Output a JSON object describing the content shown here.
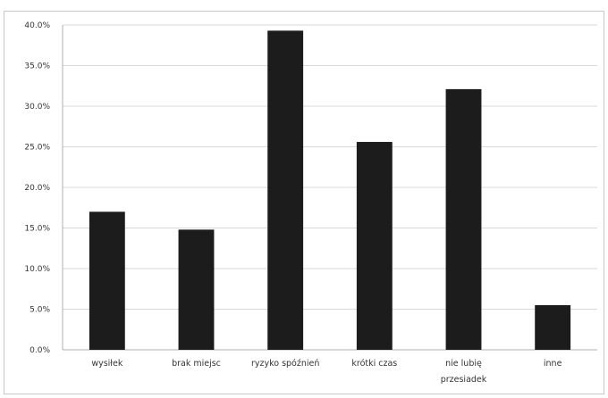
{
  "chart_data": {
    "type": "bar",
    "categories": [
      [
        "wysiłek"
      ],
      [
        "brak miejsc"
      ],
      [
        "ryzyko spóźnień"
      ],
      [
        "krótki czas"
      ],
      [
        "nie lubię",
        "przesiadek"
      ],
      [
        "inne"
      ]
    ],
    "values": [
      17.0,
      14.8,
      39.3,
      25.6,
      32.1,
      5.5
    ],
    "title": "",
    "xlabel": "",
    "ylabel": "",
    "ylim": [
      0,
      40
    ],
    "yticks": [
      0,
      5,
      10,
      15,
      20,
      25,
      30,
      35,
      40
    ],
    "ytick_labels": [
      "0.0%",
      "5.0%",
      "10.0%",
      "15.0%",
      "20.0%",
      "25.0%",
      "30.0%",
      "35.0%",
      "40.0%"
    ],
    "grid": true,
    "legend": "none",
    "bar_color": "#1c1c1c",
    "grid_color": "#d9d9d9",
    "axis_color": "#b0b0b0"
  }
}
